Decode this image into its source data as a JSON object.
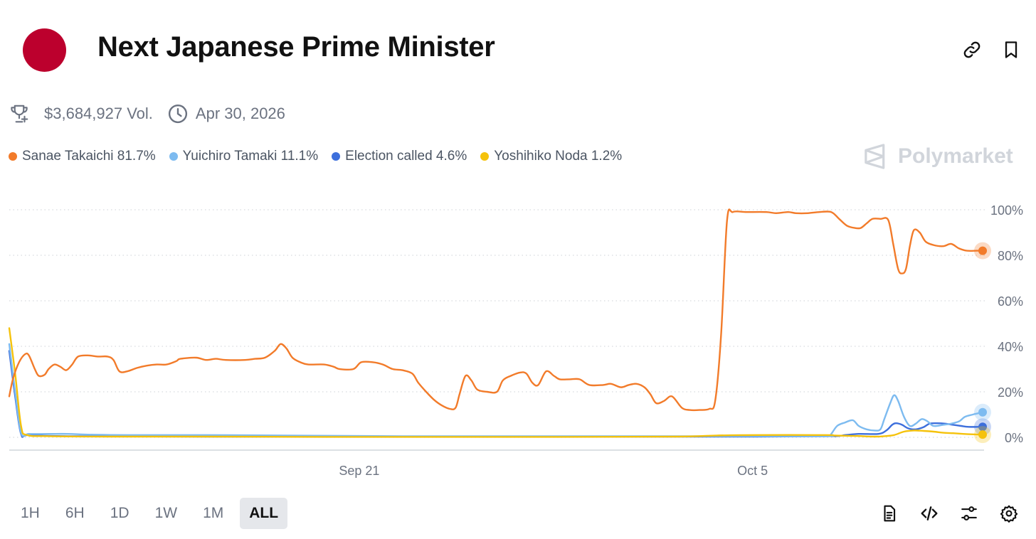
{
  "header": {
    "title": "Next Japanese Prime Minister",
    "flag_color": "#bc002d"
  },
  "meta": {
    "volume": "$3,684,927 Vol.",
    "end_date": "Apr 30, 2026"
  },
  "brand": {
    "name": "Polymarket"
  },
  "legend": [
    {
      "label": "Sanae Takaichi 81.7%",
      "color": "#f27b2a"
    },
    {
      "label": "Yuichiro Tamaki 11.1%",
      "color": "#7dbbf0"
    },
    {
      "label": "Election called 4.6%",
      "color": "#3d6fdc"
    },
    {
      "label": "Yoshihiko Noda 1.2%",
      "color": "#f5c20b"
    }
  ],
  "chart_data": {
    "type": "line",
    "y_ticks": [
      "100%",
      "80%",
      "60%",
      "40%",
      "20%",
      "0%"
    ],
    "x_ticks": [
      {
        "label": "Sep 21",
        "x": 17.8
      },
      {
        "label": "Oct 5",
        "x": 37.8
      }
    ],
    "x_range": [
      0,
      49.5
    ],
    "y_range": [
      0,
      100
    ],
    "grid": true,
    "series": [
      {
        "key": "sanae",
        "color": "#f27b2a",
        "end_marker": true,
        "points": [
          [
            0,
            18
          ],
          [
            0.2,
            26
          ],
          [
            0.5,
            33
          ],
          [
            0.8,
            36.5
          ],
          [
            1,
            36
          ],
          [
            1.3,
            30
          ],
          [
            1.5,
            27
          ],
          [
            1.8,
            27.5
          ],
          [
            2,
            30
          ],
          [
            2.3,
            32
          ],
          [
            2.6,
            31
          ],
          [
            2.9,
            29.5
          ],
          [
            3.2,
            32
          ],
          [
            3.5,
            35.5
          ],
          [
            4,
            36
          ],
          [
            4.5,
            35.5
          ],
          [
            5,
            35.5
          ],
          [
            5.3,
            34
          ],
          [
            5.6,
            29
          ],
          [
            6,
            29
          ],
          [
            6.5,
            30.5
          ],
          [
            7,
            31.5
          ],
          [
            7.5,
            32
          ],
          [
            8,
            32
          ],
          [
            8.5,
            33.5
          ],
          [
            8.7,
            34.5
          ],
          [
            9.5,
            35
          ],
          [
            10,
            34
          ],
          [
            10.5,
            34.5
          ],
          [
            11,
            34
          ],
          [
            12,
            34
          ],
          [
            12.5,
            34.5
          ],
          [
            13,
            35
          ],
          [
            13.5,
            38
          ],
          [
            13.8,
            41
          ],
          [
            14.1,
            39
          ],
          [
            14.4,
            35
          ],
          [
            14.8,
            33
          ],
          [
            15.2,
            32
          ],
          [
            16,
            32
          ],
          [
            16.5,
            31
          ],
          [
            16.8,
            30
          ],
          [
            17.5,
            30
          ],
          [
            17.9,
            33
          ],
          [
            18.5,
            33
          ],
          [
            19,
            32
          ],
          [
            19.5,
            30
          ],
          [
            20,
            29.5
          ],
          [
            20.5,
            28
          ],
          [
            20.8,
            24
          ],
          [
            21.2,
            20
          ],
          [
            21.6,
            16.5
          ],
          [
            22,
            14
          ],
          [
            22.4,
            12.5
          ],
          [
            22.7,
            13
          ],
          [
            22.9,
            19
          ],
          [
            23.2,
            27
          ],
          [
            23.5,
            25
          ],
          [
            23.8,
            21
          ],
          [
            24.3,
            20
          ],
          [
            24.8,
            20
          ],
          [
            25.1,
            25
          ],
          [
            25.5,
            27
          ],
          [
            26,
            28.5
          ],
          [
            26.3,
            28
          ],
          [
            26.6,
            24
          ],
          [
            26.9,
            23
          ],
          [
            27.3,
            29
          ],
          [
            27.7,
            27
          ],
          [
            28,
            25.5
          ],
          [
            28.5,
            25.5
          ],
          [
            29,
            25.5
          ],
          [
            29.5,
            23
          ],
          [
            30.2,
            23
          ],
          [
            30.6,
            23.5
          ],
          [
            31.1,
            22
          ],
          [
            31.5,
            23
          ],
          [
            31.9,
            23.5
          ],
          [
            32.3,
            22
          ],
          [
            32.6,
            19
          ],
          [
            32.9,
            15
          ],
          [
            33.3,
            16
          ],
          [
            33.7,
            18
          ],
          [
            34.2,
            13
          ],
          [
            34.6,
            12
          ],
          [
            35.1,
            12
          ],
          [
            35.6,
            12.5
          ],
          [
            35.9,
            16
          ],
          [
            36.2,
            45
          ],
          [
            36.5,
            95
          ],
          [
            36.8,
            99
          ],
          [
            37.5,
            99
          ],
          [
            38.5,
            99
          ],
          [
            39,
            98.5
          ],
          [
            39.6,
            99
          ],
          [
            40,
            98.5
          ],
          [
            40.6,
            98.5
          ],
          [
            41.2,
            99
          ],
          [
            41.8,
            99
          ],
          [
            42.2,
            96
          ],
          [
            42.6,
            93
          ],
          [
            43,
            92
          ],
          [
            43.3,
            92
          ],
          [
            43.6,
            94
          ],
          [
            43.9,
            96
          ],
          [
            44.3,
            96
          ],
          [
            44.7,
            95.5
          ],
          [
            44.95,
            85
          ],
          [
            45.2,
            74
          ],
          [
            45.4,
            72
          ],
          [
            45.6,
            74
          ],
          [
            45.8,
            84
          ],
          [
            46,
            91
          ],
          [
            46.3,
            90
          ],
          [
            46.6,
            86
          ],
          [
            47,
            84.5
          ],
          [
            47.5,
            84
          ],
          [
            47.9,
            85
          ],
          [
            48.3,
            83
          ],
          [
            48.7,
            82
          ],
          [
            49.2,
            82
          ],
          [
            49.5,
            82
          ]
        ]
      },
      {
        "key": "tamaki",
        "color": "#7dbbf0",
        "end_marker": true,
        "points": [
          [
            0,
            41
          ],
          [
            0.3,
            20
          ],
          [
            0.6,
            2
          ],
          [
            1,
            1.5
          ],
          [
            2,
            1.5
          ],
          [
            3,
            1.5
          ],
          [
            4,
            1.2
          ],
          [
            6,
            1
          ],
          [
            10,
            1
          ],
          [
            14,
            0.8
          ],
          [
            20,
            0.5
          ],
          [
            26,
            0.5
          ],
          [
            30,
            0.5
          ],
          [
            34,
            0.5
          ],
          [
            38,
            0.5
          ],
          [
            41.6,
            0.5
          ],
          [
            41.8,
            1.5
          ],
          [
            42.1,
            5
          ],
          [
            42.5,
            6.5
          ],
          [
            42.9,
            7.5
          ],
          [
            43.2,
            5
          ],
          [
            43.6,
            3.5
          ],
          [
            44,
            3
          ],
          [
            44.3,
            3.5
          ],
          [
            44.5,
            8
          ],
          [
            44.8,
            15
          ],
          [
            45,
            18.5
          ],
          [
            45.2,
            16
          ],
          [
            45.5,
            9
          ],
          [
            45.8,
            5
          ],
          [
            46.1,
            6
          ],
          [
            46.4,
            8
          ],
          [
            46.7,
            7
          ],
          [
            47,
            5
          ],
          [
            47.5,
            5.5
          ],
          [
            47.9,
            6
          ],
          [
            48.3,
            7
          ],
          [
            48.6,
            9
          ],
          [
            49,
            10
          ],
          [
            49.5,
            11
          ]
        ]
      },
      {
        "key": "election",
        "color": "#3d6fdc",
        "end_marker": true,
        "points": [
          [
            0,
            38
          ],
          [
            0.3,
            18
          ],
          [
            0.6,
            1.5
          ],
          [
            1,
            1
          ],
          [
            3,
            0.5
          ],
          [
            10,
            0.3
          ],
          [
            20,
            0.3
          ],
          [
            30,
            0.3
          ],
          [
            38,
            0.3
          ],
          [
            41.8,
            0.5
          ],
          [
            42.5,
            1
          ],
          [
            43.2,
            1.5
          ],
          [
            44.2,
            1.5
          ],
          [
            44.6,
            3
          ],
          [
            44.9,
            5.5
          ],
          [
            45.1,
            6.2
          ],
          [
            45.4,
            5.5
          ],
          [
            45.7,
            4
          ],
          [
            46.1,
            3.5
          ],
          [
            46.5,
            4.5
          ],
          [
            46.8,
            6
          ],
          [
            47.2,
            6.2
          ],
          [
            47.6,
            6
          ],
          [
            48,
            5.5
          ],
          [
            48.4,
            5
          ],
          [
            48.8,
            4.6
          ],
          [
            49.5,
            4.6
          ]
        ]
      },
      {
        "key": "noda",
        "color": "#f5c20b",
        "end_marker": true,
        "points": [
          [
            0,
            48
          ],
          [
            0.3,
            28
          ],
          [
            0.6,
            5
          ],
          [
            0.9,
            1
          ],
          [
            2,
            0.5
          ],
          [
            5,
            0.3
          ],
          [
            10,
            0.3
          ],
          [
            16,
            0.2
          ],
          [
            22,
            0.2
          ],
          [
            28,
            0.2
          ],
          [
            34,
            0.3
          ],
          [
            36,
            0.8
          ],
          [
            38,
            1
          ],
          [
            41.5,
            1
          ],
          [
            42,
            0.8
          ],
          [
            43,
            0.6
          ],
          [
            44,
            0.3
          ],
          [
            44.5,
            0.5
          ],
          [
            45,
            1
          ],
          [
            45.5,
            2.5
          ],
          [
            46,
            3
          ],
          [
            46.5,
            2.8
          ],
          [
            47,
            2.5
          ],
          [
            47.5,
            2
          ],
          [
            48,
            1.8
          ],
          [
            48.5,
            1.5
          ],
          [
            49,
            1.3
          ],
          [
            49.5,
            1.2
          ]
        ]
      }
    ]
  },
  "time_ranges": [
    {
      "label": "1H",
      "active": false
    },
    {
      "label": "6H",
      "active": false
    },
    {
      "label": "1D",
      "active": false
    },
    {
      "label": "1W",
      "active": false
    },
    {
      "label": "1M",
      "active": false
    },
    {
      "label": "ALL",
      "active": true
    }
  ],
  "icons": {
    "link": "link-icon",
    "bookmark": "bookmark-icon",
    "trophy": "trophy-icon",
    "clock": "clock-icon",
    "document": "document-icon",
    "embed": "code-icon",
    "filter": "sliders-icon",
    "settings": "gear-icon"
  }
}
